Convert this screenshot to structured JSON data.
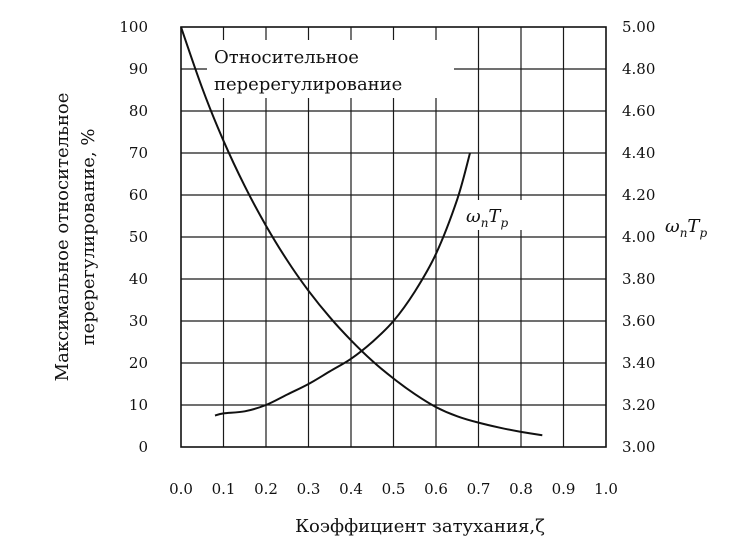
{
  "chart_data": {
    "type": "line",
    "xlabel": "Коэффициент затухания,ζ",
    "ylabel_left": [
      "Максимальное относительное",
      "перерегулирование, %"
    ],
    "ylabel_right_base": "ω",
    "ylabel_right_sub1": "n",
    "ylabel_right_mid": "T",
    "ylabel_right_sub2": "p",
    "xlim": [
      0.0,
      1.0
    ],
    "ylim_left": [
      0,
      100
    ],
    "ylim_right": [
      3.0,
      5.0
    ],
    "x_ticks": [
      "0.0",
      "0.1",
      "0.2",
      "0.3",
      "0.4",
      "0.5",
      "0.6",
      "0.7",
      "0.8",
      "0.9",
      "1.0"
    ],
    "y_left_ticks": [
      "0",
      "10",
      "20",
      "30",
      "40",
      "50",
      "60",
      "70",
      "80",
      "90",
      "100"
    ],
    "y_right_ticks": [
      "3.00",
      "3.20",
      "3.40",
      "3.60",
      "3.80",
      "4.00",
      "4.20",
      "4.40",
      "4.60",
      "4.80",
      "5.00"
    ],
    "grid": true,
    "series": [
      {
        "name": "Относительное перерегулирование",
        "label_lines": [
          "Относительное",
          "перерегулирование"
        ],
        "axis": "left",
        "x": [
          0.0,
          0.05,
          0.1,
          0.15,
          0.2,
          0.25,
          0.3,
          0.35,
          0.4,
          0.45,
          0.5,
          0.55,
          0.6,
          0.65,
          0.7,
          0.75,
          0.8,
          0.85
        ],
        "y": [
          100,
          85.4,
          72.9,
          62.1,
          52.7,
          44.4,
          37.2,
          30.9,
          25.4,
          20.5,
          16.3,
          12.6,
          9.5,
          7.3,
          5.8,
          4.6,
          3.6,
          2.8
        ]
      },
      {
        "name": "ωnTp",
        "label_parts": {
          "base": "ω",
          "sub1": "n",
          "mid": "T",
          "sub2": "p"
        },
        "axis": "right",
        "x": [
          0.08,
          0.1,
          0.15,
          0.2,
          0.25,
          0.3,
          0.35,
          0.4,
          0.45,
          0.5,
          0.55,
          0.6,
          0.65,
          0.68
        ],
        "y": [
          3.15,
          3.16,
          3.17,
          3.2,
          3.25,
          3.3,
          3.36,
          3.42,
          3.5,
          3.6,
          3.74,
          3.92,
          4.18,
          4.4
        ]
      }
    ]
  }
}
